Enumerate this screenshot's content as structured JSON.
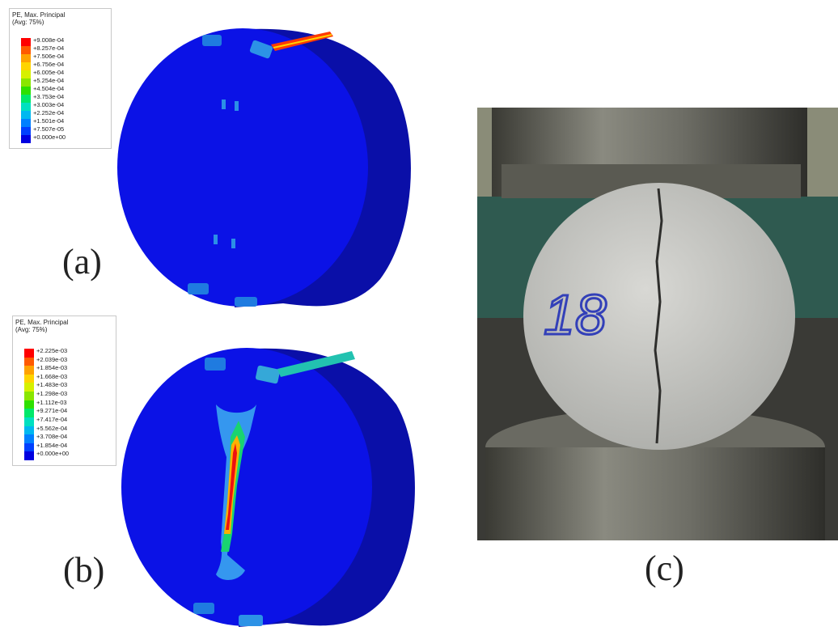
{
  "legend_a": {
    "title": [
      "PE, Max. Principal",
      "(Avg: 75%)"
    ],
    "values": [
      "+9.008e-04",
      "+8.257e-04",
      "+7.506e-04",
      "+6.756e-04",
      "+6.005e-04",
      "+5.254e-04",
      "+4.504e-04",
      "+3.753e-04",
      "+3.003e-04",
      "+2.252e-04",
      "+1.501e-04",
      "+7.507e-05",
      "+0.000e+00"
    ]
  },
  "legend_b": {
    "title": [
      "PE, Max. Principal",
      "(Avg: 75%)"
    ],
    "values": [
      "+2.225e-03",
      "+2.039e-03",
      "+1.854e-03",
      "+1.668e-03",
      "+1.483e-03",
      "+1.298e-03",
      "+1.112e-03",
      "+9.271e-04",
      "+7.417e-04",
      "+5.562e-04",
      "+3.708e-04",
      "+1.854e-04",
      "+0.000e+00"
    ]
  },
  "legend_colors": [
    "#ff0000",
    "#ff5a00",
    "#ffa200",
    "#ffd400",
    "#d6f000",
    "#8ae600",
    "#2ee000",
    "#00e86a",
    "#00e0c0",
    "#00b8f0",
    "#0080ff",
    "#0040ff",
    "#0000e0"
  ],
  "labels": {
    "a": "(a)",
    "b": "(b)",
    "c": "(c)"
  },
  "photo": {
    "specimen_marking": "18"
  }
}
